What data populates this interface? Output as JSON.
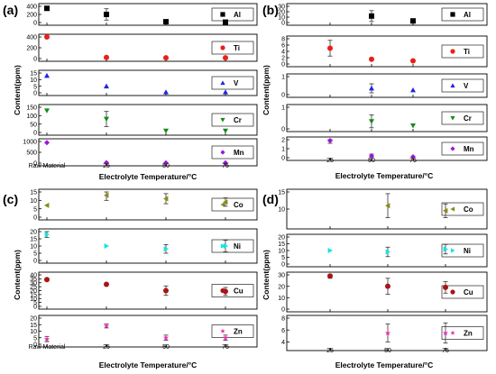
{
  "figure_labels": {
    "a": "(a)",
    "b": "(b)",
    "c": "(c)",
    "d": "(d)"
  },
  "x_axis_title": "Electrolyte Temperature/°C",
  "y_axis_title": "Content(ppm)",
  "colors": {
    "Al": "#000000",
    "Ti": "#e8201a",
    "V": "#2323e0",
    "Cr": "#168a16",
    "Mn": "#9c17d8",
    "Co": "#8a8a17",
    "Ni": "#12e4e4",
    "Cu": "#a81515",
    "Zn": "#ee2cb2"
  },
  "chart_data": [
    {
      "panel": "(a)",
      "type": "scatter",
      "x_categories": [
        "Raw Material",
        "25",
        "50",
        "75"
      ],
      "xlabel": "Electrolyte Temperature/°C",
      "ylabel": "Content(ppm)",
      "series": [
        {
          "name": "Al",
          "marker": "square",
          "x": [
            "Raw Material",
            "25",
            "50",
            "75"
          ],
          "y": [
            350,
            200,
            20,
            10
          ],
          "err": [
            0,
            140,
            0,
            0
          ],
          "ylim": [
            0,
            400
          ],
          "ticks": [
            0,
            200,
            400
          ]
        },
        {
          "name": "Ti",
          "marker": "circle",
          "x": [
            "Raw Material",
            "25",
            "50",
            "75"
          ],
          "y": [
            400,
            20,
            15,
            15
          ],
          "err": [
            0,
            0,
            0,
            0
          ],
          "ylim": [
            0,
            400
          ],
          "ticks": [
            0,
            200,
            400
          ]
        },
        {
          "name": "V",
          "marker": "triangle-up",
          "x": [
            "Raw Material",
            "25",
            "50",
            "75"
          ],
          "y": [
            13,
            5,
            0.5,
            0.5
          ],
          "err": [
            0,
            0,
            0,
            0
          ],
          "ylim": [
            0,
            15
          ],
          "ticks": [
            0,
            5,
            10,
            15
          ]
        },
        {
          "name": "Cr",
          "marker": "triangle-down",
          "x": [
            "Raw Material",
            "25",
            "50",
            "75"
          ],
          "y": [
            130,
            80,
            10,
            10
          ],
          "err": [
            0,
            45,
            0,
            0
          ],
          "ylim": [
            0,
            150
          ],
          "ticks": [
            0,
            50,
            100,
            150
          ]
        },
        {
          "name": "Mn",
          "marker": "diamond",
          "x": [
            "Raw Material",
            "25",
            "50",
            "75"
          ],
          "y": [
            950,
            20,
            10,
            10
          ],
          "err": [
            0,
            0,
            0,
            0
          ],
          "ylim": [
            0,
            1000
          ],
          "ticks": [
            0,
            500,
            1000
          ]
        }
      ]
    },
    {
      "panel": "(b)",
      "type": "scatter",
      "x_categories": [
        "25",
        "50",
        "75"
      ],
      "xlabel": "Electrolyte Temperature/°C",
      "ylabel": "Content(ppm)",
      "series": [
        {
          "name": "Al",
          "marker": "square",
          "x": [
            "25",
            "50",
            "75"
          ],
          "y": [
            null,
            12,
            3
          ],
          "err": [
            0,
            10,
            0
          ],
          "ylim": [
            0,
            30
          ],
          "ticks": [
            0,
            10,
            20,
            30
          ]
        },
        {
          "name": "Ti",
          "marker": "circle",
          "x": [
            "25",
            "50",
            "75"
          ],
          "y": [
            5,
            1.5,
            1
          ],
          "err": [
            2.5,
            0,
            0
          ],
          "ylim": [
            0,
            8
          ],
          "ticks": [
            0,
            2,
            4,
            6,
            8
          ]
        },
        {
          "name": "V",
          "marker": "triangle-up",
          "x": [
            "25",
            "50",
            "75"
          ],
          "y": [
            null,
            0.35,
            0.25
          ],
          "err": [
            0,
            0.25,
            0
          ],
          "ylim": [
            0,
            1
          ],
          "ticks": [
            0,
            1
          ]
        },
        {
          "name": "Cr",
          "marker": "triangle-down",
          "x": [
            "25",
            "50",
            "75"
          ],
          "y": [
            null,
            0.35,
            0.15
          ],
          "err": [
            0,
            0.3,
            0
          ],
          "ylim": [
            0,
            1
          ],
          "ticks": [
            0,
            1
          ]
        },
        {
          "name": "Mn",
          "marker": "diamond",
          "x": [
            "25",
            "50",
            "75"
          ],
          "y": [
            1.9,
            0.2,
            0.1
          ],
          "err": [
            0.3,
            0.2,
            0
          ],
          "ylim": [
            0,
            2
          ],
          "ticks": [
            0,
            1,
            2
          ]
        }
      ]
    },
    {
      "panel": "(c)",
      "type": "scatter",
      "x_categories": [
        "Raw Material",
        "25",
        "50",
        "75"
      ],
      "xlabel": "Electrolyte Temperature/°C",
      "ylabel": "Content(ppm)",
      "series": [
        {
          "name": "Co",
          "marker": "triangle-left",
          "x": [
            "Raw Material",
            "25",
            "50",
            "75"
          ],
          "y": [
            7,
            13,
            11,
            9
          ],
          "err": [
            0,
            3,
            3,
            2.5
          ],
          "ylim": [
            0,
            15
          ],
          "ticks": [
            0,
            5,
            10,
            15
          ]
        },
        {
          "name": "Ni",
          "marker": "triangle-right",
          "x": [
            "Raw Material",
            "25",
            "50",
            "75"
          ],
          "y": [
            18,
            10,
            8,
            10
          ],
          "err": [
            2,
            0,
            3,
            4
          ],
          "ylim": [
            0,
            20
          ],
          "ticks": [
            0,
            5,
            10,
            15,
            20
          ]
        },
        {
          "name": "Cu",
          "marker": "circle",
          "x": [
            "Raw Material",
            "25",
            "50",
            "75"
          ],
          "y": [
            34,
            28,
            20,
            19
          ],
          "err": [
            0,
            0,
            6,
            5
          ],
          "ylim": [
            0,
            40
          ],
          "ticks": [
            0,
            5,
            10,
            15,
            20,
            25,
            30,
            35,
            40
          ]
        },
        {
          "name": "Zn",
          "marker": "star",
          "x": [
            "Raw Material",
            "25",
            "50",
            "75"
          ],
          "y": [
            4,
            14,
            5,
            5
          ],
          "err": [
            2,
            1.5,
            2,
            2
          ],
          "ylim": [
            0,
            20
          ],
          "ticks": [
            0,
            5,
            10,
            15,
            20
          ]
        }
      ]
    },
    {
      "panel": "(d)",
      "type": "scatter",
      "x_categories": [
        "25",
        "50",
        "75"
      ],
      "xlabel": "Electrolyte Temperature/°C",
      "ylabel": "Content(ppm)",
      "series": [
        {
          "name": "Co",
          "marker": "triangle-left",
          "x": [
            "25",
            "50",
            "75"
          ],
          "y": [
            null,
            11,
            9.5
          ],
          "err": [
            0,
            3.5,
            2
          ],
          "ylim": [
            5,
            15
          ],
          "ticks": [
            10,
            15
          ]
        },
        {
          "name": "Ni",
          "marker": "triangle-right",
          "x": [
            "25",
            "50",
            "75"
          ],
          "y": [
            10,
            9,
            11
          ],
          "err": [
            0,
            3.5,
            3.5
          ],
          "ylim": [
            0,
            20
          ],
          "ticks": [
            0,
            5,
            10,
            15,
            20
          ]
        },
        {
          "name": "Cu",
          "marker": "circle",
          "x": [
            "25",
            "50",
            "75"
          ],
          "y": [
            29,
            20,
            19
          ],
          "err": [
            2,
            7,
            5
          ],
          "ylim": [
            0,
            30
          ],
          "ticks": [
            0,
            10,
            20,
            30
          ]
        },
        {
          "name": "Zn",
          "marker": "star",
          "x": [
            "25",
            "50",
            "75"
          ],
          "y": [
            null,
            5.5,
            5.5
          ],
          "err": [
            0,
            1.5,
            1.7
          ],
          "ylim": [
            3,
            8
          ],
          "ticks": [
            4,
            6,
            8
          ]
        }
      ]
    }
  ]
}
